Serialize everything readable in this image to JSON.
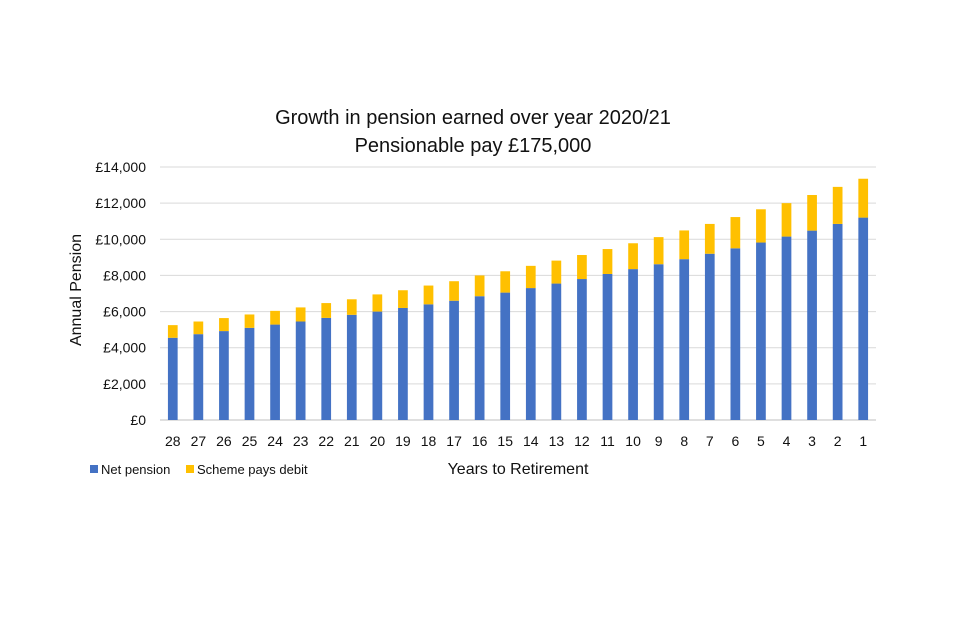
{
  "chart_data": {
    "type": "bar",
    "stacked": true,
    "title": "Growth in pension earned over year 2020/21",
    "subtitle": "Pensionable pay £175,000",
    "xlabel": "Years to Retirement",
    "ylabel": "Annual Pension",
    "ylim": [
      0,
      14000
    ],
    "y_ticks": [
      0,
      2000,
      4000,
      6000,
      8000,
      10000,
      12000,
      14000
    ],
    "y_tick_labels": [
      "£0",
      "£2,000",
      "£4,000",
      "£6,000",
      "£8,000",
      "£10,000",
      "£12,000",
      "£14,000"
    ],
    "categories": [
      "28",
      "27",
      "26",
      "25",
      "24",
      "23",
      "22",
      "21",
      "20",
      "19",
      "18",
      "17",
      "16",
      "15",
      "14",
      "13",
      "12",
      "11",
      "10",
      "9",
      "8",
      "7",
      "6",
      "5",
      "4",
      "3",
      "2",
      "1"
    ],
    "grid": true,
    "legend_position": "bottom-left",
    "series": [
      {
        "name": "Net pension",
        "color": "#4472C4",
        "values": [
          4550,
          4750,
          4920,
          5100,
          5280,
          5450,
          5650,
          5820,
          6000,
          6200,
          6400,
          6600,
          6850,
          7050,
          7300,
          7550,
          7800,
          8080,
          8350,
          8620,
          8900,
          9200,
          9500,
          9820,
          10150,
          10480,
          10850,
          11200
        ]
      },
      {
        "name": "Scheme pays debit",
        "color": "#FFC000",
        "values": [
          700,
          700,
          720,
          740,
          760,
          780,
          820,
          860,
          950,
          980,
          1040,
          1080,
          1150,
          1180,
          1230,
          1270,
          1330,
          1380,
          1430,
          1500,
          1590,
          1650,
          1730,
          1840,
          1850,
          1970,
          2050,
          2150
        ]
      }
    ]
  }
}
